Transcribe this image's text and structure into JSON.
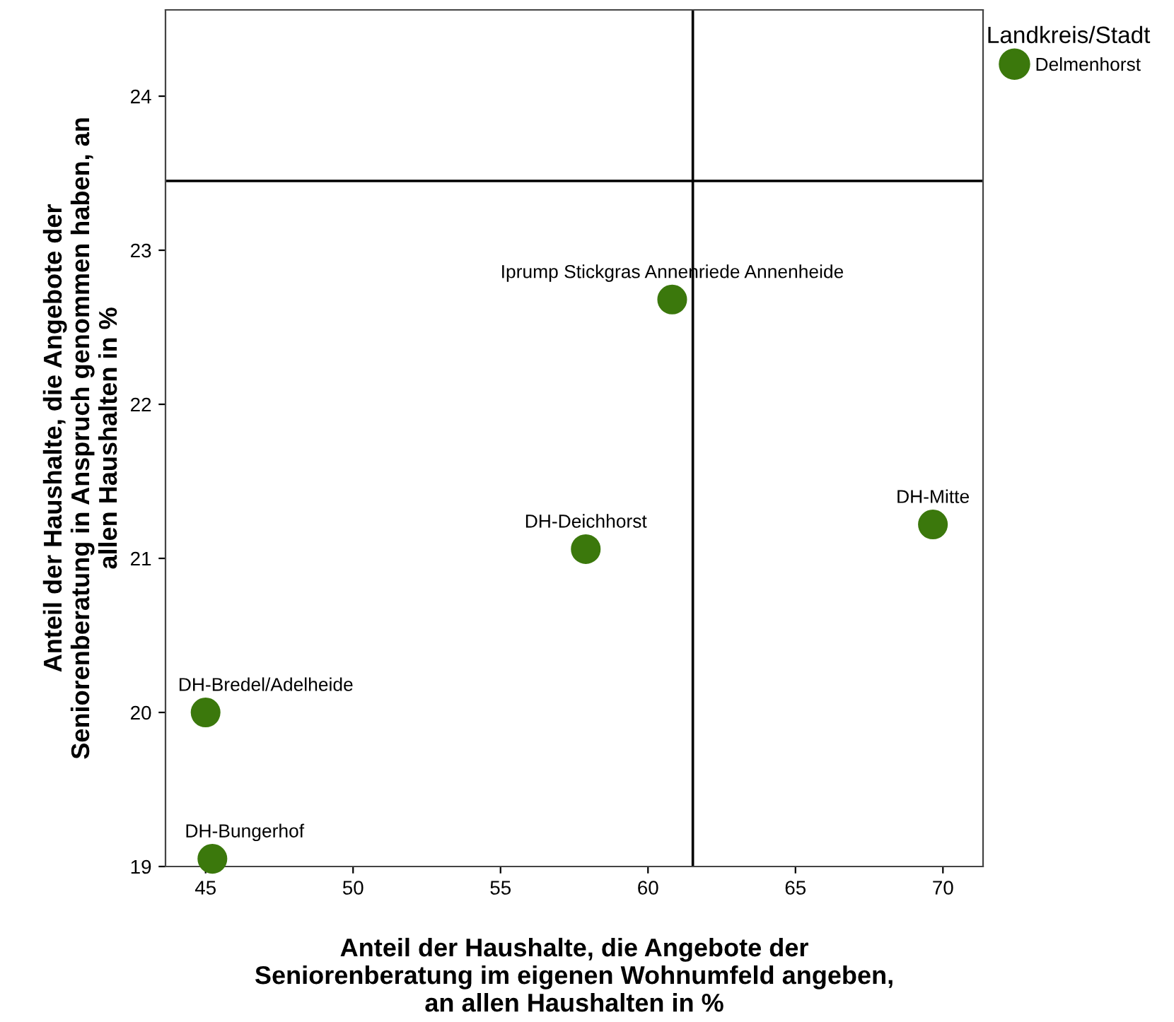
{
  "chart_data": {
    "type": "scatter",
    "xlabel": "Anteil der Haushalte, die Angebote der\nSeniorenberatung im eigenen Wohnumfeld angeben,\nan allen Haushalten in %",
    "ylabel": "Anteil der Haushalte, die Angebote der\nSeniorenberatung in Anspruch genommen haben, an\nallen Haushalten in %",
    "legend_title": "Landkreis/Stadt",
    "series": [
      {
        "name": "Delmenhorst",
        "color": "#3b780c",
        "x": [
          45.0,
          45.23,
          57.89,
          60.82,
          69.66
        ],
        "values": [
          20.0,
          19.05,
          21.06,
          22.68,
          21.22
        ]
      }
    ],
    "annotations": [
      {
        "text": "DH-Bredel/Adelheide",
        "x": 45.0,
        "y": 20.0
      },
      {
        "text": "DH-Bungerhof",
        "x": 45.23,
        "y": 19.05
      },
      {
        "text": "DH-Deichhorst",
        "x": 57.89,
        "y": 21.06
      },
      {
        "text": "Iprump Stickgras Annenriede Annenheide",
        "x": 60.82,
        "y": 22.68
      },
      {
        "text": "DH-Mitte",
        "x": 69.66,
        "y": 21.22
      }
    ],
    "ref_lines": [
      {
        "axis": "x",
        "value": 61.52,
        "color": "#000000"
      },
      {
        "axis": "y",
        "value": 23.45,
        "color": "#000000"
      }
    ],
    "xlim": [
      43.64,
      71.36
    ],
    "ylim": [
      19,
      24.56
    ],
    "xticks": [
      45,
      50,
      55,
      60,
      65,
      70
    ],
    "yticks": [
      19,
      20,
      21,
      22,
      23,
      24
    ],
    "marker": "circle",
    "grid": false,
    "legend": "top right"
  }
}
